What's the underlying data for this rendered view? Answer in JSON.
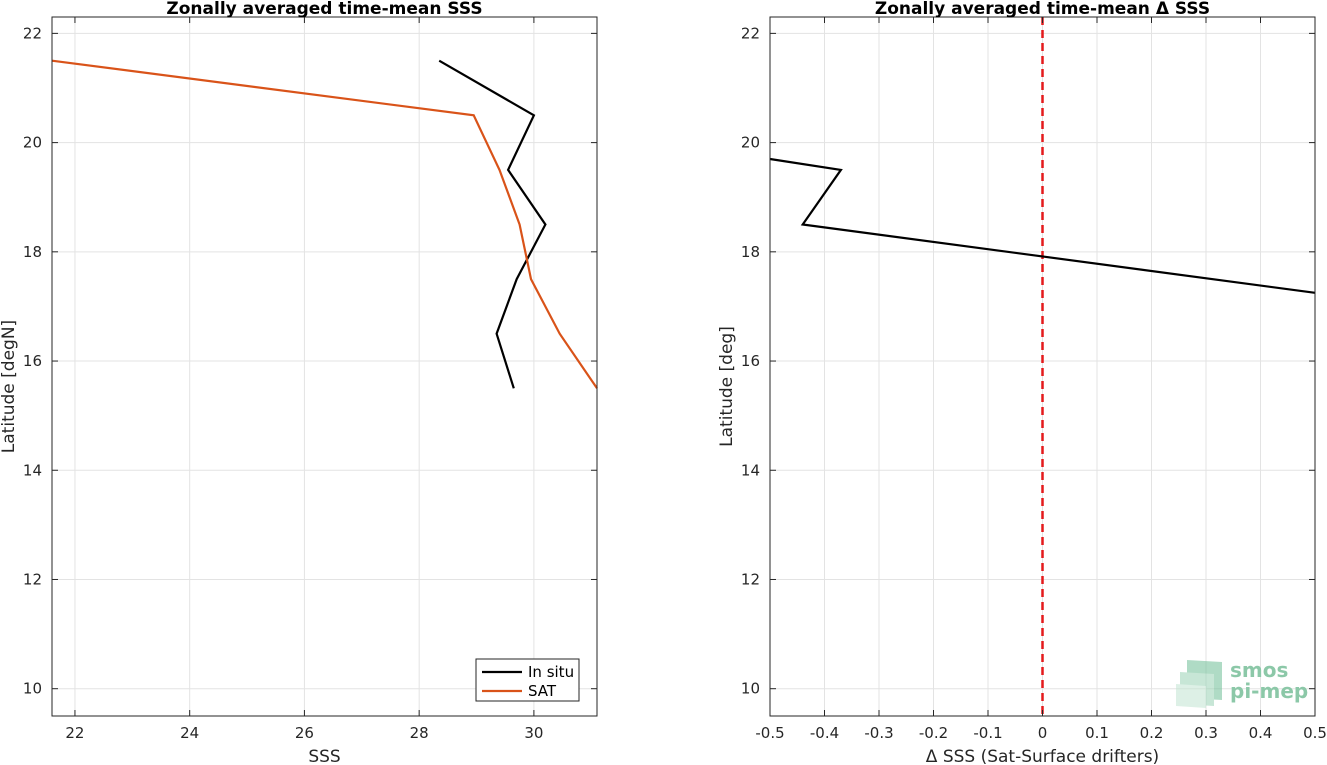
{
  "chart_data": [
    {
      "type": "line",
      "title": "Zonally averaged time-mean SSS",
      "xlabel": "SSS",
      "ylabel": "Latitude [degN]",
      "xlim": [
        21.6,
        31.1
      ],
      "ylim": [
        9.5,
        22.3
      ],
      "xticks": [
        "22",
        "24",
        "26",
        "28",
        "30"
      ],
      "xtick_values": [
        22,
        24,
        26,
        28,
        30
      ],
      "yticks": [
        "10",
        "12",
        "14",
        "16",
        "18",
        "20",
        "22"
      ],
      "ytick_values": [
        10,
        12,
        14,
        16,
        18,
        20,
        22
      ],
      "grid": true,
      "legend_placement": "bottom-right",
      "series": [
        {
          "name": "In situ",
          "color": "#000000",
          "x": [
            28.35,
            30.0,
            29.55,
            30.2,
            29.7,
            29.35,
            29.65
          ],
          "y": [
            21.5,
            20.5,
            19.5,
            18.5,
            17.5,
            16.5,
            15.5
          ]
        },
        {
          "name": "SAT",
          "color": "#d95319",
          "x": [
            21.6,
            28.95,
            29.4,
            29.75,
            29.95,
            30.45,
            31.1
          ],
          "y": [
            21.5,
            20.5,
            19.5,
            18.5,
            17.5,
            16.5,
            15.5
          ]
        }
      ]
    },
    {
      "type": "line",
      "title": "Zonally averaged time-mean Δ SSS",
      "xlabel": "Δ SSS (Sat-Surface drifters)",
      "ylabel": "Latitude [deg]",
      "xlim": [
        -0.5,
        0.5
      ],
      "ylim": [
        9.5,
        22.3
      ],
      "xticks": [
        "-0.5",
        "-0.4",
        "-0.3",
        "-0.2",
        "-0.1",
        "0",
        "0.1",
        "0.2",
        "0.3",
        "0.4",
        "0.5"
      ],
      "xtick_values": [
        -0.5,
        -0.4,
        -0.3,
        -0.2,
        -0.1,
        0,
        0.1,
        0.2,
        0.3,
        0.4,
        0.5
      ],
      "yticks": [
        "10",
        "12",
        "14",
        "16",
        "18",
        "20",
        "22"
      ],
      "ytick_values": [
        10,
        12,
        14,
        16,
        18,
        20,
        22
      ],
      "grid": true,
      "reference_line": {
        "x": 0,
        "color": "#e41a1c",
        "style": "dashed"
      },
      "series": [
        {
          "color": "#000000",
          "x": [
            -0.5,
            -0.37,
            -0.44,
            0.5
          ],
          "y": [
            19.7,
            19.5,
            18.5,
            17.25
          ]
        }
      ]
    }
  ],
  "watermark": {
    "line1": "smos",
    "line2": "pi-mep",
    "color": "#8cc8a8"
  }
}
